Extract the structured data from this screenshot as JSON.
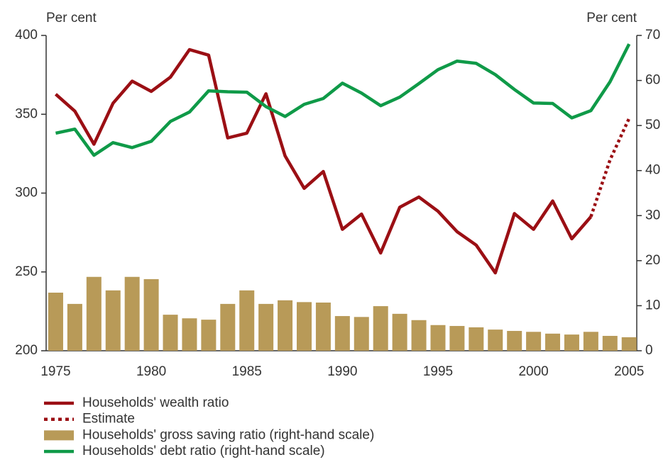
{
  "chart_data": {
    "type": "combo",
    "y_label": "Per cent",
    "y2_label": "Per cent",
    "x": [
      1975,
      1976,
      1977,
      1978,
      1979,
      1980,
      1981,
      1982,
      1983,
      1984,
      1985,
      1986,
      1987,
      1988,
      1989,
      1990,
      1991,
      1992,
      1993,
      1994,
      1995,
      1996,
      1997,
      1998,
      1999,
      2000,
      2001,
      2002,
      2003,
      2004,
      2005
    ],
    "xlim": [
      1974.5,
      2005.4
    ],
    "xticks": [
      1975,
      1980,
      1985,
      1990,
      1995,
      2000,
      2005
    ],
    "ylim": [
      200,
      400
    ],
    "yticks": [
      200,
      250,
      300,
      350,
      400
    ],
    "y2lim": [
      0,
      70
    ],
    "y2ticks": [
      0,
      10,
      20,
      30,
      40,
      50,
      60,
      70
    ],
    "series": [
      {
        "name": "Households' wealth ratio",
        "kind": "line",
        "color": "#9b0f14",
        "values": [
          362.7,
          352,
          331,
          357,
          371,
          364.5,
          373.5,
          391,
          387.5,
          335,
          338,
          363,
          323.6,
          303,
          313.7,
          277,
          286.7,
          262,
          291,
          297.5,
          288.5,
          275.5,
          267,
          249.4,
          287,
          277,
          295,
          271,
          285,
          null,
          null
        ]
      },
      {
        "name": "Estimate",
        "kind": "dotted",
        "color": "#9b0f14",
        "values": [
          null,
          null,
          null,
          null,
          null,
          null,
          null,
          null,
          null,
          null,
          null,
          null,
          null,
          null,
          null,
          null,
          null,
          null,
          null,
          null,
          null,
          null,
          null,
          null,
          null,
          null,
          null,
          null,
          285,
          321,
          347.4
        ]
      },
      {
        "name": "Households' gross saving ratio (right-hand scale)",
        "kind": "bar",
        "axis": "y2",
        "color": "#b89a58",
        "values": [
          12.9,
          10.4,
          16.4,
          13.4,
          16.4,
          15.9,
          8.0,
          7.2,
          6.9,
          10.4,
          13.4,
          10.4,
          11.2,
          10.8,
          10.7,
          7.7,
          7.5,
          9.9,
          8.2,
          6.8,
          5.7,
          5.5,
          5.2,
          4.7,
          4.4,
          4.2,
          3.8,
          3.6,
          4.2,
          3.3,
          3.0
        ]
      },
      {
        "name": "Households' debt ratio (right-hand scale)",
        "kind": "line",
        "axis": "y2",
        "color": "#0f9a48",
        "values": [
          48.3,
          49.2,
          43.4,
          46.2,
          45.1,
          46.5,
          50.9,
          53,
          57.7,
          57.5,
          57.4,
          54.2,
          52,
          54.7,
          56,
          59.4,
          57.2,
          54.4,
          56.3,
          59.3,
          62.4,
          64.3,
          63.8,
          61.3,
          58,
          55,
          54.9,
          51.7,
          53.3,
          59.7,
          68.1
        ]
      }
    ]
  }
}
